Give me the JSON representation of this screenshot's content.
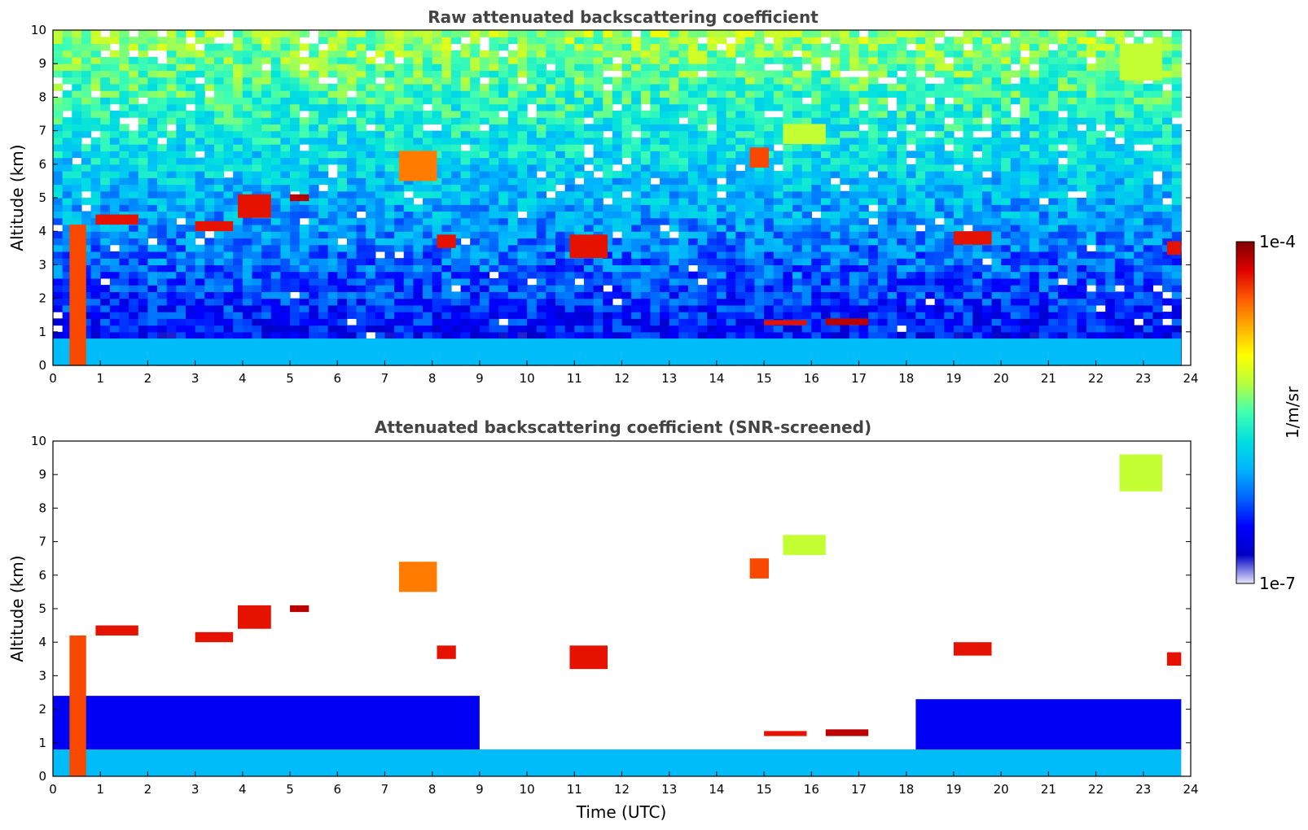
{
  "chart_data": [
    {
      "type": "heatmap",
      "title": "Raw attenuated backscattering coefficient",
      "xlabel": "",
      "ylabel": "Altitude (km)",
      "xlim": [
        0,
        24
      ],
      "ylim": [
        0,
        10
      ],
      "xticks": [
        0,
        1,
        2,
        3,
        4,
        5,
        6,
        7,
        8,
        9,
        10,
        11,
        12,
        13,
        14,
        15,
        16,
        17,
        18,
        19,
        20,
        21,
        22,
        23,
        24
      ],
      "yticks": [
        0,
        1,
        2,
        3,
        4,
        5,
        6,
        7,
        8,
        9,
        10
      ],
      "screening": "raw",
      "features": [
        {
          "name": "boundary-layer",
          "x": [
            0,
            23.8
          ],
          "y": [
            0,
            0.8
          ],
          "level": 0.35
        },
        {
          "name": "dust-plume",
          "x": [
            0.35,
            0.7
          ],
          "y": [
            0,
            4.2
          ],
          "level": 0.85
        },
        {
          "name": "mid-cloud-1",
          "x": [
            0.9,
            1.8
          ],
          "y": [
            4.2,
            4.5
          ],
          "level": 0.9
        },
        {
          "name": "mid-cloud-2",
          "x": [
            3.0,
            3.8
          ],
          "y": [
            4.0,
            4.3
          ],
          "level": 0.9
        },
        {
          "name": "mid-cloud-3",
          "x": [
            3.9,
            4.6
          ],
          "y": [
            4.4,
            5.1
          ],
          "level": 0.9
        },
        {
          "name": "mid-cloud-4",
          "x": [
            5.0,
            5.4
          ],
          "y": [
            4.9,
            5.1
          ],
          "level": 0.95
        },
        {
          "name": "alto-cloud-7.5",
          "x": [
            7.3,
            8.1
          ],
          "y": [
            5.5,
            6.4
          ],
          "level": 0.8
        },
        {
          "name": "cloud-8.2",
          "x": [
            8.1,
            8.5
          ],
          "y": [
            3.5,
            3.9
          ],
          "level": 0.9
        },
        {
          "name": "cloud-11",
          "x": [
            10.9,
            11.7
          ],
          "y": [
            3.2,
            3.9
          ],
          "level": 0.9
        },
        {
          "name": "cloud-14.8",
          "x": [
            14.7,
            15.1
          ],
          "y": [
            5.9,
            6.5
          ],
          "level": 0.85
        },
        {
          "name": "cirrus-15.7",
          "x": [
            15.4,
            16.3
          ],
          "y": [
            6.6,
            7.2
          ],
          "level": 0.6
        },
        {
          "name": "low-cloud-15",
          "x": [
            15.0,
            15.9
          ],
          "y": [
            1.2,
            1.35
          ],
          "level": 0.9
        },
        {
          "name": "low-cloud-17",
          "x": [
            16.3,
            17.2
          ],
          "y": [
            1.2,
            1.4
          ],
          "level": 0.95
        },
        {
          "name": "cloud-19.5",
          "x": [
            19.0,
            19.8
          ],
          "y": [
            3.6,
            4.0
          ],
          "level": 0.9
        },
        {
          "name": "cirrus-23",
          "x": [
            22.5,
            23.4
          ],
          "y": [
            8.5,
            9.6
          ],
          "level": 0.6
        },
        {
          "name": "cloud-23.7",
          "x": [
            23.5,
            23.8
          ],
          "y": [
            3.3,
            3.7
          ],
          "level": 0.9
        }
      ]
    },
    {
      "type": "heatmap",
      "title": "Attenuated backscattering coefficient (SNR-screened)",
      "xlabel": "Time (UTC)",
      "ylabel": "Altitude (km)",
      "xlim": [
        0,
        24
      ],
      "ylim": [
        0,
        10
      ],
      "xticks": [
        0,
        1,
        2,
        3,
        4,
        5,
        6,
        7,
        8,
        9,
        10,
        11,
        12,
        13,
        14,
        15,
        16,
        17,
        18,
        19,
        20,
        21,
        22,
        23,
        24
      ],
      "yticks": [
        0,
        1,
        2,
        3,
        4,
        5,
        6,
        7,
        8,
        9,
        10
      ],
      "screening": "snr",
      "features": [
        {
          "name": "boundary-layer",
          "x": [
            0,
            23.8
          ],
          "y": [
            0,
            0.8
          ],
          "level": 0.35
        },
        {
          "name": "aerosol-layer-left",
          "x": [
            0,
            9
          ],
          "y": [
            0.8,
            2.4
          ],
          "level": 0.15
        },
        {
          "name": "aerosol-layer-right",
          "x": [
            18.2,
            23.8
          ],
          "y": [
            0.8,
            2.3
          ],
          "level": 0.15
        },
        {
          "name": "dust-plume",
          "x": [
            0.35,
            0.7
          ],
          "y": [
            0,
            4.2
          ],
          "level": 0.85
        },
        {
          "name": "mid-cloud-1",
          "x": [
            0.9,
            1.8
          ],
          "y": [
            4.2,
            4.5
          ],
          "level": 0.9
        },
        {
          "name": "mid-cloud-2",
          "x": [
            3.0,
            3.8
          ],
          "y": [
            4.0,
            4.3
          ],
          "level": 0.9
        },
        {
          "name": "mid-cloud-3",
          "x": [
            3.9,
            4.6
          ],
          "y": [
            4.4,
            5.1
          ],
          "level": 0.9
        },
        {
          "name": "mid-cloud-4",
          "x": [
            5.0,
            5.4
          ],
          "y": [
            4.9,
            5.1
          ],
          "level": 0.95
        },
        {
          "name": "alto-cloud-7.5",
          "x": [
            7.3,
            8.1
          ],
          "y": [
            5.5,
            6.4
          ],
          "level": 0.8
        },
        {
          "name": "cloud-8.2",
          "x": [
            8.1,
            8.5
          ],
          "y": [
            3.5,
            3.9
          ],
          "level": 0.9
        },
        {
          "name": "cloud-11",
          "x": [
            10.9,
            11.7
          ],
          "y": [
            3.2,
            3.9
          ],
          "level": 0.9
        },
        {
          "name": "cloud-14.8",
          "x": [
            14.7,
            15.1
          ],
          "y": [
            5.9,
            6.5
          ],
          "level": 0.85
        },
        {
          "name": "cirrus-15.7",
          "x": [
            15.4,
            16.3
          ],
          "y": [
            6.6,
            7.2
          ],
          "level": 0.6
        },
        {
          "name": "low-cloud-15",
          "x": [
            15.0,
            15.9
          ],
          "y": [
            1.2,
            1.35
          ],
          "level": 0.9
        },
        {
          "name": "low-cloud-17",
          "x": [
            16.3,
            17.2
          ],
          "y": [
            1.2,
            1.4
          ],
          "level": 0.95
        },
        {
          "name": "cloud-19.5",
          "x": [
            19.0,
            19.8
          ],
          "y": [
            3.6,
            4.0
          ],
          "level": 0.9
        },
        {
          "name": "cirrus-23",
          "x": [
            22.5,
            23.4
          ],
          "y": [
            8.5,
            9.6
          ],
          "level": 0.6
        },
        {
          "name": "cloud-23.7",
          "x": [
            23.5,
            23.8
          ],
          "y": [
            3.3,
            3.7
          ],
          "level": 0.9
        }
      ]
    }
  ],
  "colorbar": {
    "label": "1/m/sr",
    "max_label": "1e-4",
    "min_label": "1e-7",
    "range": [
      1e-07,
      0.0001
    ],
    "scale": "log",
    "colormap": "jet",
    "colors": [
      "#e6e6fa",
      "#0000c8",
      "#0000ff",
      "#0064ff",
      "#00b4ff",
      "#00e0e0",
      "#40ffb0",
      "#b4ff40",
      "#ffff00",
      "#ffb000",
      "#ff5a00",
      "#e00000",
      "#800000"
    ]
  }
}
